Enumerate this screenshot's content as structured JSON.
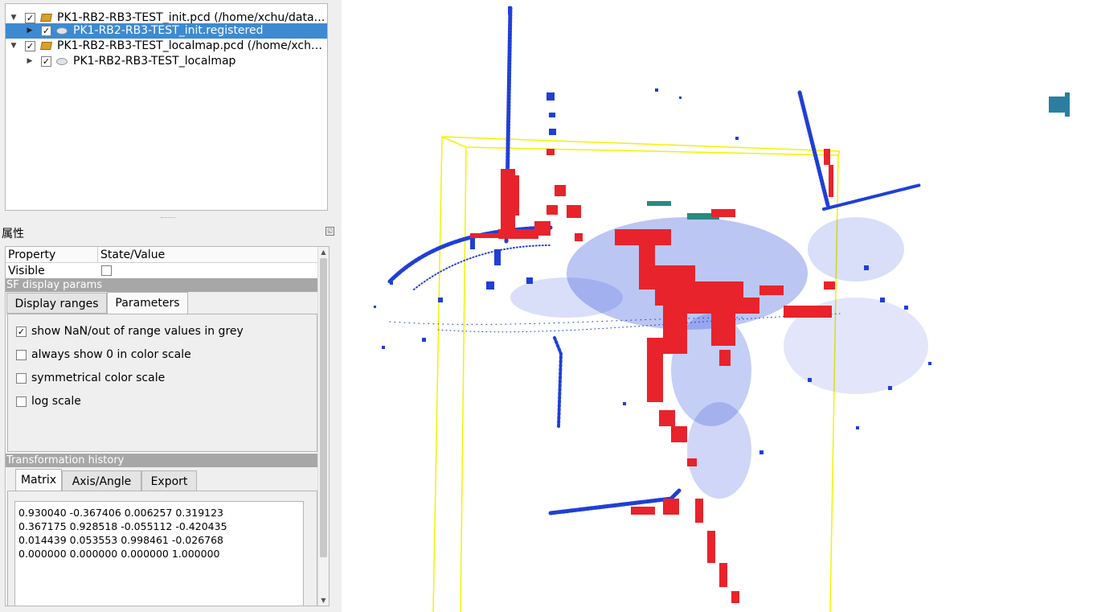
{
  "db_tree": {
    "items": [
      {
        "label": "PK1-RB2-RB3-TEST_init.pcd (/home/xchu/data/...",
        "checked": true,
        "expanded": true,
        "type": "folder-icon"
      },
      {
        "label": "PK1-RB2-RB3-TEST_init.registered",
        "checked": true,
        "expanded": false,
        "type": "cloud-icon",
        "selected": true
      },
      {
        "label": "PK1-RB2-RB3-TEST_localmap.pcd (/home/xchu...",
        "checked": true,
        "expanded": true,
        "type": "folder-icon"
      },
      {
        "label": "PK1-RB2-RB3-TEST_localmap",
        "checked": true,
        "expanded": false,
        "type": "cloud-icon"
      }
    ]
  },
  "properties": {
    "title": "属性",
    "header": {
      "property": "Property",
      "value": "State/Value"
    },
    "visible_label": "Visible",
    "visible_checked": false,
    "sf_section": "SF display params",
    "sf_tabs": [
      "Display ranges",
      "Parameters"
    ],
    "sf_active_tab": "Parameters",
    "options": [
      {
        "label": "show NaN/out of range values in grey",
        "checked": true
      },
      {
        "label": "always show 0 in color scale",
        "checked": false
      },
      {
        "label": "symmetrical color scale",
        "checked": false
      },
      {
        "label": "log scale",
        "checked": false
      }
    ],
    "transform_section": "Transformation history",
    "transform_tabs": [
      "Matrix",
      "Axis/Angle",
      "Export"
    ],
    "transform_active_tab": "Matrix",
    "matrix_rows": [
      "0.930040 -0.367406 0.006257 0.319123",
      "0.367175 0.928518 -0.055112 -0.420435",
      "0.014439 0.053553 0.998461 -0.026768",
      "0.000000 0.000000 0.000000 1.000000"
    ]
  },
  "viewport": {
    "colors": {
      "cloud_blue": "#1f3fd6",
      "cloud_red": "#e8232c",
      "bbox_yellow": "#f2f200",
      "selection": "#3d8ad1"
    }
  }
}
